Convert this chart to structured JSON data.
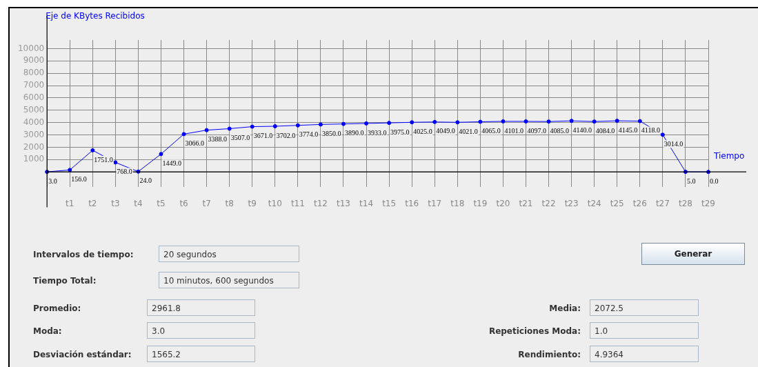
{
  "chart_data": {
    "type": "line",
    "ylabel": "Eje de KBytes Recibidos",
    "xlabel": "Tiempo",
    "categories": [
      null,
      "t1",
      "t2",
      "t3",
      "t4",
      "t5",
      "t6",
      "t7",
      "t8",
      "t9",
      "t10",
      "t11",
      "t12",
      "t13",
      "t14",
      "t15",
      "t16",
      "t17",
      "t18",
      "t19",
      "t20",
      "t21",
      "t22",
      "t23",
      "t24",
      "t25",
      "t26",
      "t27",
      "t28",
      "t29"
    ],
    "series": [
      {
        "color": "#0000ff",
        "values": [
          3,
          156,
          1751,
          768,
          24,
          1449,
          3066,
          3388,
          3507,
          3671,
          3702,
          3774,
          3850,
          3890,
          3933,
          3975,
          4025,
          4049,
          4021,
          4065,
          4101,
          4097,
          4085,
          4140,
          4084,
          4145,
          4118,
          3014,
          5,
          0
        ],
        "value_labels": [
          "3.0",
          "156.0",
          "1751.0",
          "768.0",
          "24.0",
          "1449.0",
          "3066.0",
          "3388.0",
          "3507.0",
          "3671.0",
          "3702.0",
          "3774.0",
          "3850.0",
          "3890.0",
          "3933.0",
          "3975.0",
          "4025.0",
          "4049.0",
          "4021.0",
          "4065.0",
          "4101.0",
          "4097.0",
          "4085.0",
          "4140.0",
          "4084.0",
          "4145.0",
          "4118.0",
          "3014.0",
          "5.0",
          "0.0"
        ]
      }
    ],
    "ylim": [
      -1200,
      10700
    ],
    "yticks": [
      {
        "value": 0,
        "label": null
      },
      1000,
      2000,
      3000,
      4000,
      5000,
      6000,
      7000,
      8000,
      9000,
      10000
    ],
    "grid": true,
    "legend": false,
    "marker": "circle",
    "line_style": "solid",
    "annotations": [
      "Intervalos de tiempo:",
      "20 segundos",
      "Tiempo Total:",
      "10 minutos, 600 segundos",
      "Promedio:",
      "2961.8",
      "Moda:",
      "3.0",
      "Desviación estándar:",
      "1565.2",
      "Media:",
      "2072.5",
      "Repeticiones Moda:",
      "1.0",
      "Rendimiento:",
      "4.9364",
      "Generar"
    ]
  }
}
